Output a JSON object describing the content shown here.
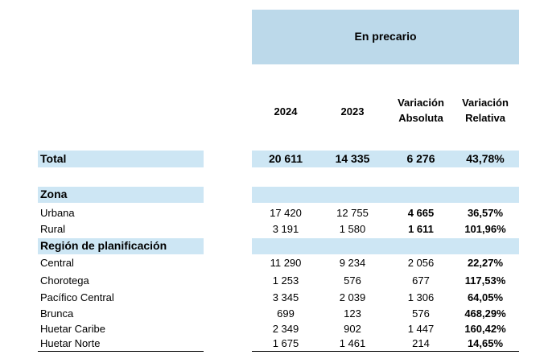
{
  "header": {
    "group_title": "En precario",
    "columns": [
      "2024",
      "2023",
      "Variación\nAbsoluta",
      "Variación\nRelativa"
    ]
  },
  "rows": [
    {
      "label": "Total",
      "values": [
        "20 611",
        "14 335",
        "6 276",
        "43,78%"
      ]
    },
    {
      "label": "Zona",
      "values": [
        "",
        "",
        "",
        ""
      ]
    },
    {
      "label": "Urbana",
      "values": [
        "17 420",
        "12 755",
        "4 665",
        "36,57%"
      ]
    },
    {
      "label": "Rural",
      "values": [
        "3 191",
        "1 580",
        "1 611",
        "101,96%"
      ]
    },
    {
      "label": "Región de planificación",
      "values": [
        "",
        "",
        "",
        ""
      ]
    },
    {
      "label": "Central",
      "values": [
        "11 290",
        "9 234",
        "2 056",
        "22,27%"
      ]
    },
    {
      "label": "Chorotega",
      "values": [
        "1 253",
        "576",
        "677",
        "117,53%"
      ]
    },
    {
      "label": "Pacífico Central",
      "values": [
        "3 345",
        "2 039",
        "1 306",
        "64,05%"
      ]
    },
    {
      "label": "Brunca",
      "values": [
        "699",
        "123",
        "576",
        "468,29%"
      ]
    },
    {
      "label": "Huetar Caribe",
      "values": [
        "2 349",
        "902",
        "1 447",
        "160,42%"
      ]
    },
    {
      "label": "Huetar Norte",
      "values": [
        "1 675",
        "1 461",
        "214",
        "14,65%"
      ]
    }
  ]
}
